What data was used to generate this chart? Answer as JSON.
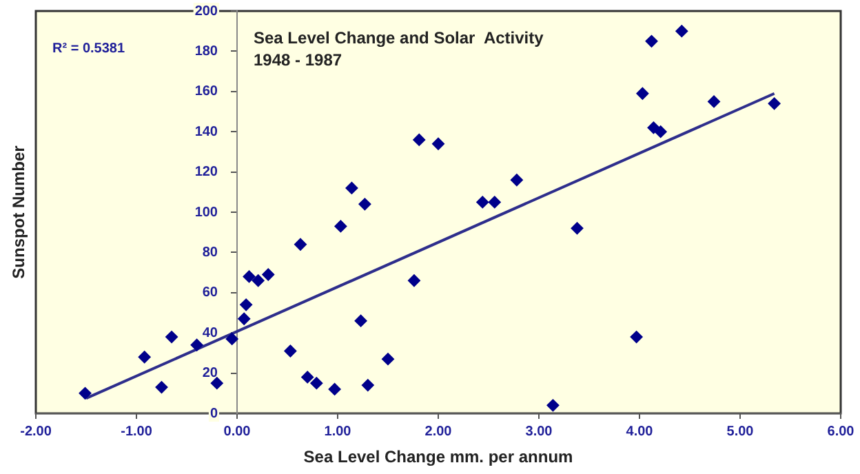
{
  "chart_data": {
    "type": "scatter",
    "title": "Sea Level Change and Solar  Activity",
    "subtitle": "1948 - 1987",
    "xlabel": "Sea Level Change mm. per annum",
    "ylabel": "Sunspot Number",
    "annotations": [
      "R² = 0.5381"
    ],
    "x": [
      -1.51,
      -0.92,
      -0.75,
      -0.65,
      -0.4,
      -0.2,
      -0.05,
      0.07,
      0.09,
      0.12,
      0.21,
      0.31,
      0.53,
      0.63,
      0.7,
      0.79,
      0.97,
      1.03,
      1.14,
      1.23,
      1.27,
      1.3,
      1.5,
      1.76,
      1.81,
      2.0,
      2.44,
      2.56,
      2.78,
      3.38,
      3.14,
      3.97,
      4.03,
      4.12,
      4.14,
      4.21,
      4.42,
      4.74,
      5.34
    ],
    "series": [
      {
        "color": "#00008b",
        "marker": "diamond",
        "values": [
          10,
          28,
          13,
          38,
          34,
          15,
          37,
          47,
          54,
          68,
          66,
          69,
          31,
          84,
          18,
          15,
          12,
          93,
          112,
          46,
          104,
          14,
          27,
          66,
          136,
          134,
          105,
          105,
          116,
          92,
          4,
          38,
          159,
          185,
          142,
          140,
          190,
          155,
          154
        ]
      },
      {
        "type": "line",
        "marker": "none",
        "color": "#2e2e8c",
        "x": [
          -1.5,
          5.34
        ],
        "values": [
          7.5,
          159
        ]
      }
    ],
    "xlim": [
      -2,
      6
    ],
    "ylim": [
      0,
      200
    ],
    "xticks": [
      {
        "value": -2,
        "label": "-2.00"
      },
      {
        "value": -1,
        "label": "-1.00"
      },
      {
        "value": 0,
        "label": "0.00"
      },
      {
        "value": 1,
        "label": "1.00"
      },
      {
        "value": 2,
        "label": "2.00"
      },
      {
        "value": 3,
        "label": "3.00"
      },
      {
        "value": 4,
        "label": "4.00"
      },
      {
        "value": 5,
        "label": "5.00"
      },
      {
        "value": 6,
        "label": "6.00"
      }
    ],
    "yticks": [
      0,
      20,
      40,
      60,
      80,
      100,
      120,
      140,
      160,
      180,
      200
    ],
    "grid": false,
    "legend": false
  }
}
